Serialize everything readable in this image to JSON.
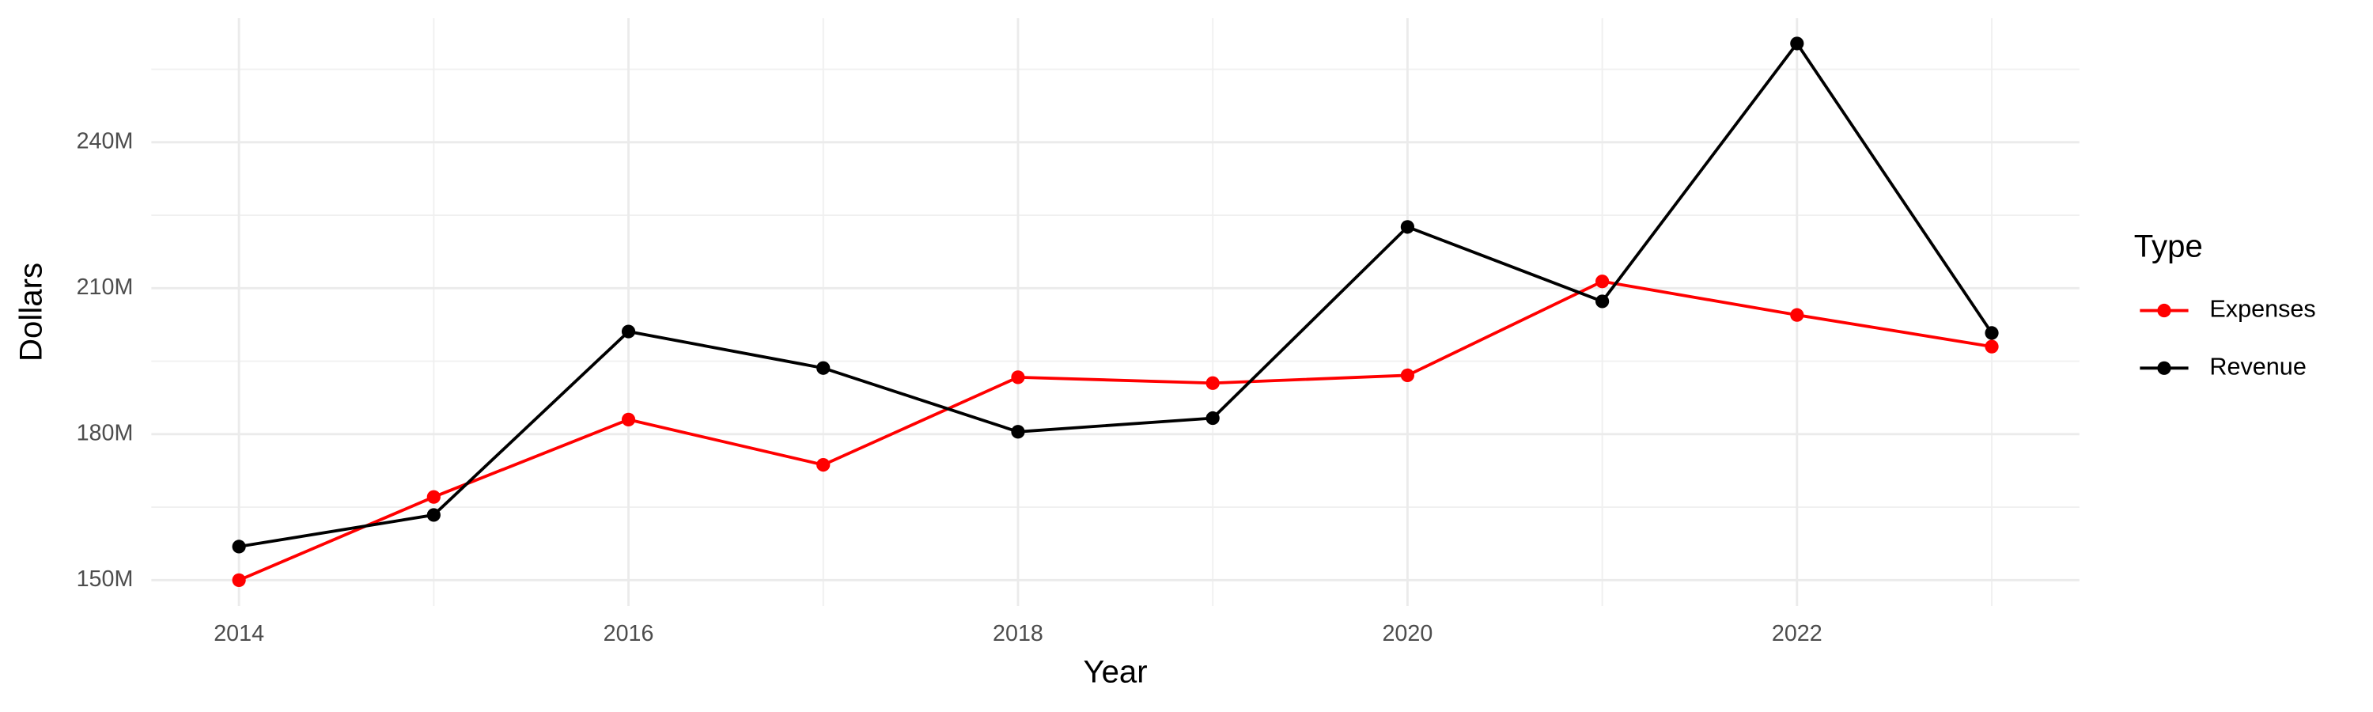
{
  "chart_data": {
    "type": "line",
    "x_label": "Year",
    "y_label": "Dollars",
    "legend_title": "Type",
    "legend_position": "right",
    "grid": true,
    "x": [
      2014,
      2015,
      2016,
      2017,
      2018,
      2019,
      2020,
      2021,
      2022,
      2023
    ],
    "series": [
      {
        "name": "Expenses",
        "color": "#ff0000",
        "values": [
          150000000,
          167100000,
          183000000,
          173700000,
          191700000,
          190500000,
          192100000,
          211400000,
          204500000,
          198000000
        ]
      },
      {
        "name": "Revenue",
        "color": "#000000",
        "values": [
          156900000,
          163400000,
          201100000,
          193600000,
          180500000,
          183300000,
          222600000,
          207300000,
          260300000,
          200800000
        ]
      }
    ],
    "xlim": [
      2013.55,
      2023.45
    ],
    "xticks": [
      2014,
      2016,
      2018,
      2020,
      2022
    ],
    "ylim": [
      144700000,
      265500000
    ],
    "yticks": [
      {
        "value": 150000000,
        "label": "150M"
      },
      {
        "value": 180000000,
        "label": "180M"
      },
      {
        "value": 210000000,
        "label": "210M"
      },
      {
        "value": 240000000,
        "label": "240M"
      }
    ]
  }
}
